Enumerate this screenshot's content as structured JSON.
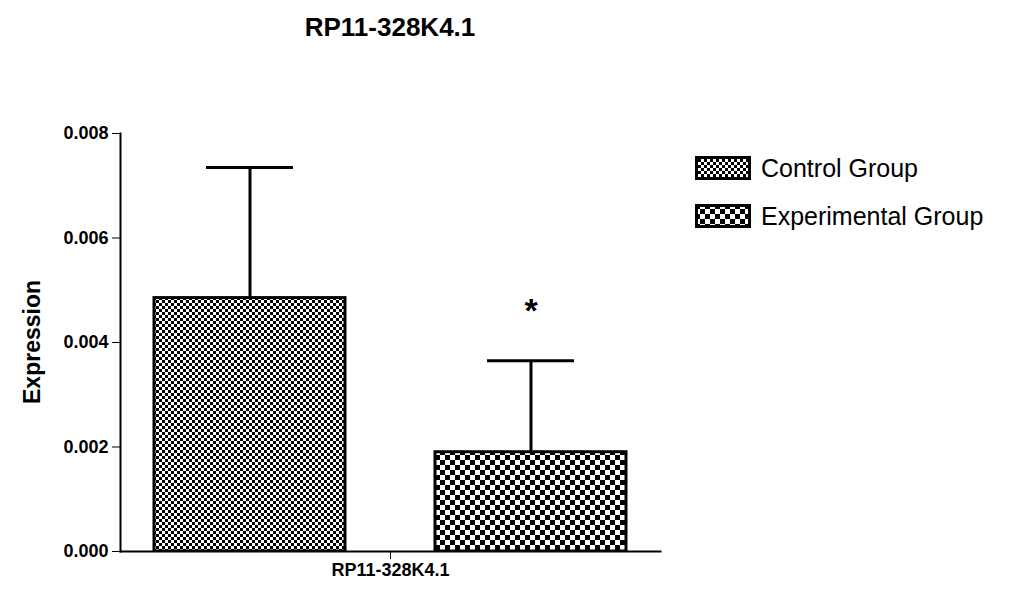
{
  "chart_data": {
    "type": "bar",
    "title": "RP11-328K4.1",
    "y_label": "Expression",
    "categories": [
      "RP11-328K4.1"
    ],
    "series": [
      {
        "name": "Control Group",
        "color": "#000000",
        "values": [
          0.00485
        ],
        "errors": [
          0.0025
        ]
      },
      {
        "name": "Experimental Group",
        "color": "#000000",
        "values": [
          0.0019
        ],
        "errors": [
          0.00175
        ]
      }
    ],
    "annotations": [
      {
        "text": "*",
        "series": "Experimental Group",
        "category": "RP11-328K4.1"
      }
    ],
    "ylim": [
      0,
      0.008
    ],
    "yticks": [
      {
        "value": 0,
        "label": "0.000"
      },
      {
        "value": 0.002,
        "label": "0.002"
      },
      {
        "value": 0.004,
        "label": "0.004"
      },
      {
        "value": 0.006,
        "label": "0.006"
      },
      {
        "value": 0.008,
        "label": "0.008"
      }
    ],
    "legend": "right",
    "grid": false
  }
}
